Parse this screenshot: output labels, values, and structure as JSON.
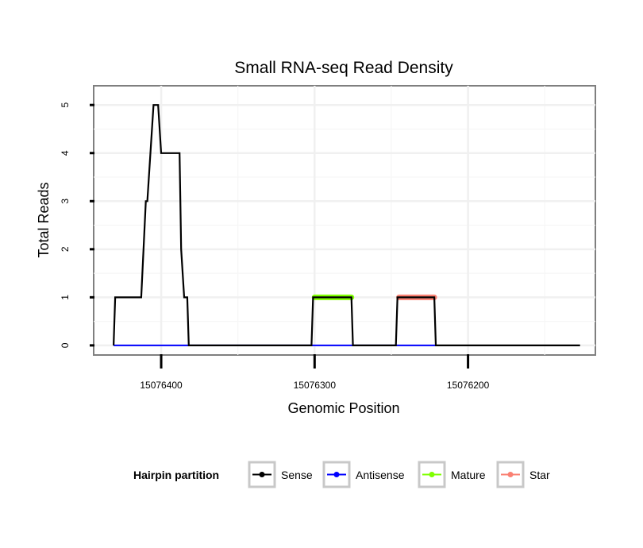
{
  "chart_data": {
    "type": "line",
    "title": "Small RNA-seq Read Density",
    "xlabel": "Genomic Position",
    "ylabel": "Total Reads",
    "x_reversed": true,
    "xlim": [
      15076444,
      15076117
    ],
    "ylim": [
      -0.2,
      5.4
    ],
    "xticks": [
      15076400,
      15076300,
      15076200
    ],
    "yticks": [
      0,
      1,
      2,
      3,
      4,
      5
    ],
    "grid": true,
    "legend": {
      "title": "Hairpin partition",
      "position": "bottom",
      "entries": [
        {
          "name": "Sense",
          "color": "#000000"
        },
        {
          "name": "Antisense",
          "color": "#0000ff"
        },
        {
          "name": "Mature",
          "color": "#7fff00"
        },
        {
          "name": "Star",
          "color": "#fa8072"
        }
      ]
    },
    "series": [
      {
        "name": "Sense",
        "color": "#000000",
        "points": [
          [
            15076431,
            0
          ],
          [
            15076430,
            1
          ],
          [
            15076413,
            1
          ],
          [
            15076410,
            3
          ],
          [
            15076409,
            3
          ],
          [
            15076405,
            5
          ],
          [
            15076402,
            5
          ],
          [
            15076400,
            4
          ],
          [
            15076388,
            4
          ],
          [
            15076387,
            2
          ],
          [
            15076385,
            1
          ],
          [
            15076383,
            1
          ],
          [
            15076382,
            0
          ],
          [
            15076302,
            0
          ],
          [
            15076301,
            1
          ],
          [
            15076276,
            1
          ],
          [
            15076275,
            0
          ],
          [
            15076247,
            0
          ],
          [
            15076246,
            1
          ],
          [
            15076222,
            1
          ],
          [
            15076221,
            0
          ],
          [
            15076127,
            0
          ]
        ]
      },
      {
        "name": "Antisense",
        "color": "#0000ff",
        "points": [
          [
            15076431,
            0
          ],
          [
            15076382,
            0
          ],
          [
            15076302,
            0
          ],
          [
            15076275,
            0
          ],
          [
            15076247,
            0
          ],
          [
            15076221,
            0
          ]
        ]
      },
      {
        "name": "Mature",
        "color": "#7fff00",
        "points": [
          [
            15076300,
            1
          ],
          [
            15076276,
            1
          ]
        ]
      },
      {
        "name": "Star",
        "color": "#fa8072",
        "points": [
          [
            15076245,
            1
          ],
          [
            15076222,
            1
          ]
        ]
      }
    ]
  }
}
